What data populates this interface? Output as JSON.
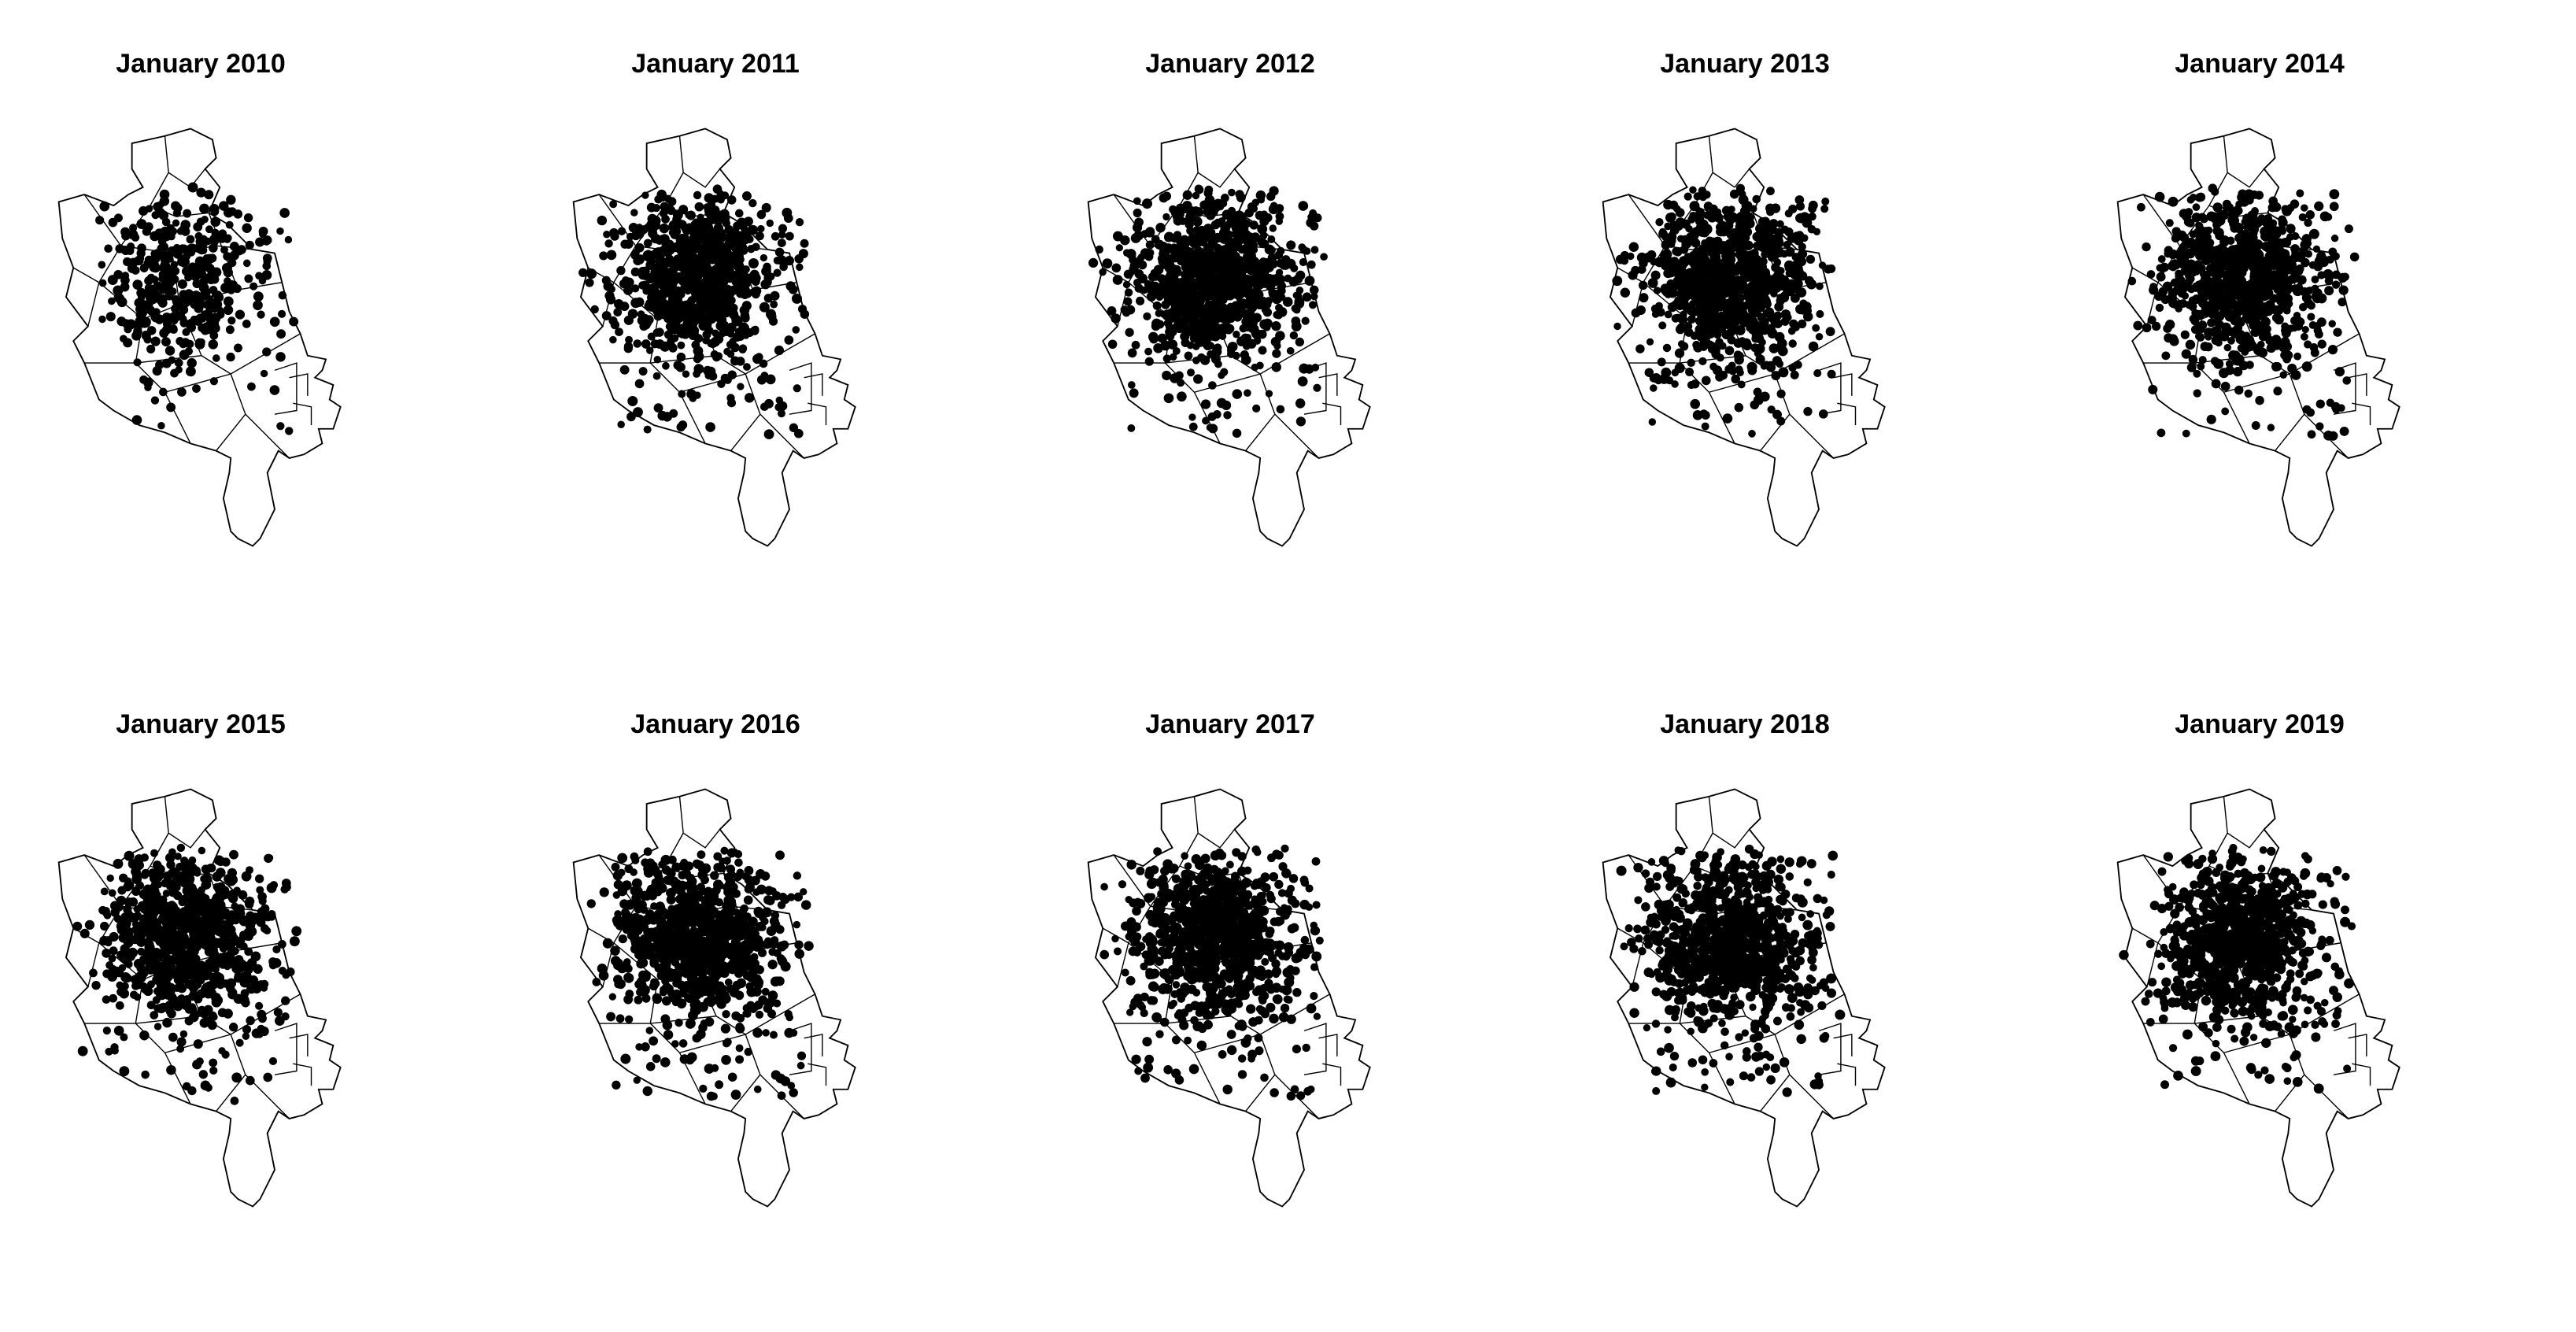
{
  "figure": {
    "panels": [
      {
        "title": "January 2010",
        "density": 0.35
      },
      {
        "title": "January 2011",
        "density": 0.8
      },
      {
        "title": "January 2012",
        "density": 0.95
      },
      {
        "title": "January 2013",
        "density": 0.9
      },
      {
        "title": "January 2014",
        "density": 0.85
      },
      {
        "title": "January 2015",
        "density": 0.85
      },
      {
        "title": "January 2016",
        "density": 0.95
      },
      {
        "title": "January 2017",
        "density": 0.95
      },
      {
        "title": "January 2018",
        "density": 0.9
      },
      {
        "title": "January 2019",
        "density": 0.85
      }
    ],
    "colors": {
      "outline": "#000000",
      "points": "#000000",
      "background": "#ffffff"
    }
  }
}
